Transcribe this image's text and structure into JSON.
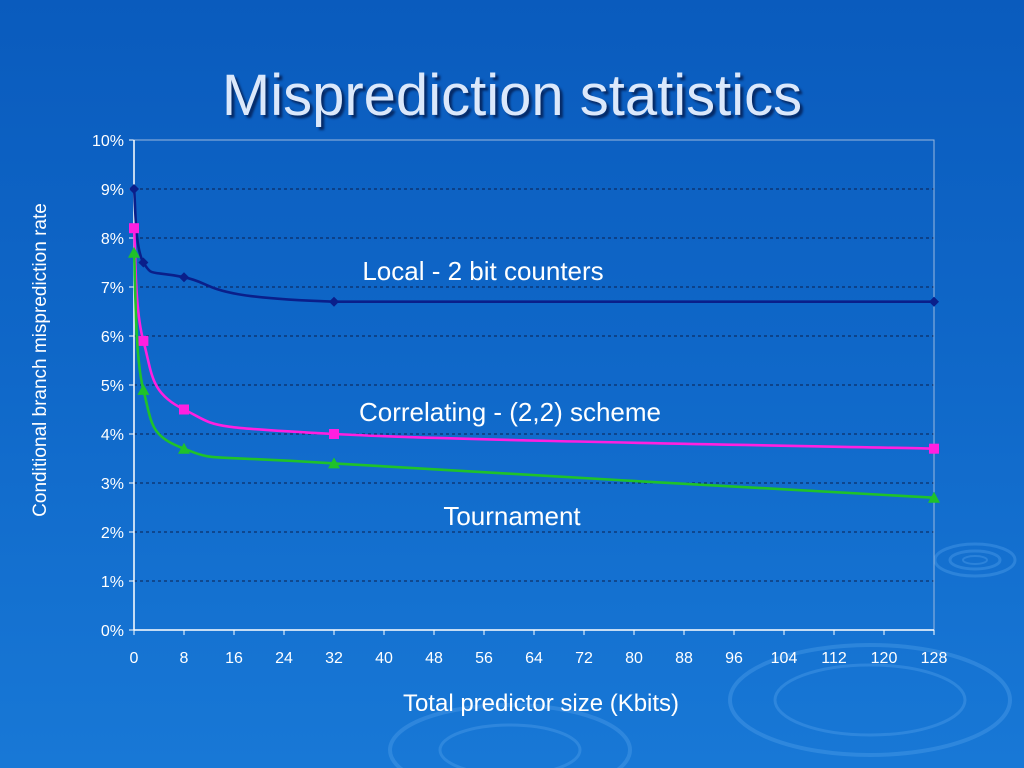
{
  "slide": {
    "title": "Misprediction statistics"
  },
  "chart_data": {
    "type": "line",
    "title": "",
    "xlabel": "Total predictor size (Kbits)",
    "ylabel": "Conditional branch misprediction rate",
    "xlim": [
      0,
      128
    ],
    "ylim": [
      0,
      0.1
    ],
    "x_ticks": [
      "0",
      "8",
      "16",
      "24",
      "32",
      "40",
      "48",
      "56",
      "64",
      "72",
      "80",
      "88",
      "96",
      "104",
      "112",
      "120",
      "128"
    ],
    "y_ticks": [
      "0%",
      "1%",
      "2%",
      "3%",
      "4%",
      "5%",
      "6%",
      "7%",
      "8%",
      "9%",
      "10%"
    ],
    "grid": "horizontal dashed",
    "annotations": [
      {
        "text": "Local - 2 bit counters"
      },
      {
        "text": "Correlating - (2,2) scheme"
      },
      {
        "text": "Tournament"
      }
    ],
    "series": [
      {
        "color": "#0a1f8a",
        "marker": "diamond",
        "points": [
          [
            0,
            0.09
          ],
          [
            1.5,
            0.075
          ],
          [
            8,
            0.072
          ],
          [
            32,
            0.067
          ],
          [
            128,
            0.067
          ]
        ]
      },
      {
        "color": "#ff1fe0",
        "marker": "square",
        "points": [
          [
            0,
            0.082
          ],
          [
            1.5,
            0.059
          ],
          [
            8,
            0.045
          ],
          [
            32,
            0.04
          ],
          [
            128,
            0.037
          ]
        ]
      },
      {
        "color": "#1fc22a",
        "marker": "triangle",
        "points": [
          [
            0,
            0.077
          ],
          [
            1.5,
            0.049
          ],
          [
            8,
            0.037
          ],
          [
            32,
            0.034
          ],
          [
            128,
            0.027
          ]
        ]
      }
    ]
  }
}
